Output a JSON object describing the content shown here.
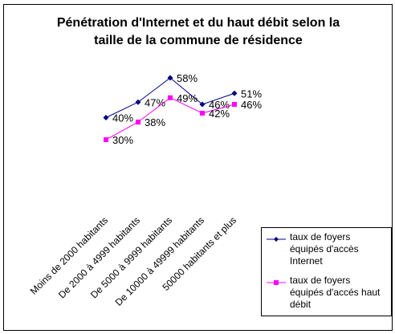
{
  "chart_data": {
    "type": "line",
    "title": "Pénétration d'Internet et du haut débit selon la taille de la commune de résidence",
    "title_lines": [
      "Pénétration d'Internet et du haut débit selon la",
      "taille de la commune de résidence"
    ],
    "categories": [
      "Moins de 2000 habitants",
      "De 2000 à 4999 habitants",
      "De 5000 à 9999 habitants",
      "De 10000 à 49999 habitants",
      "50000 habitants et plus"
    ],
    "ylim": [
      25,
      62
    ],
    "value_suffix": "%",
    "grid": false,
    "legend_position": "bottom-right",
    "series": [
      {
        "name": "taux de foyers équipés d'accès Internet",
        "name_lines": [
          "taux de foyers",
          "équipés d'accès",
          "Internet"
        ],
        "values": [
          40,
          47,
          58,
          46,
          51
        ],
        "color": "#000080",
        "marker": "diamond"
      },
      {
        "name": "taux de foyers équipés d'accés haut débit",
        "name_lines": [
          "taux de foyers",
          "équipés d'accés haut",
          "débit"
        ],
        "values": [
          30,
          38,
          49,
          42,
          46
        ],
        "color": "#ff00ff",
        "marker": "square"
      }
    ]
  }
}
